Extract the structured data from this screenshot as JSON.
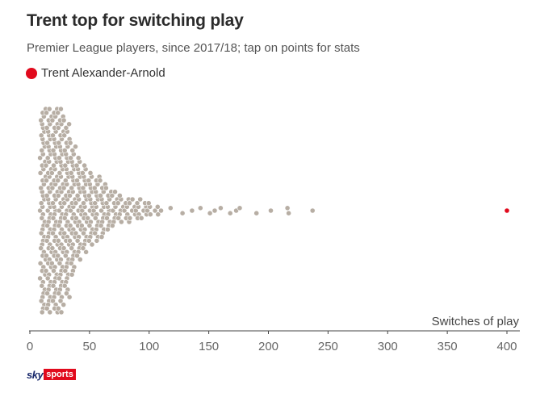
{
  "title": "Trent top for switching play",
  "subtitle": "Premier League players, since 2017/18; tap on points for stats",
  "legend": {
    "label": "Trent Alexander-Arnold",
    "color": "#e10a1d"
  },
  "brand": {
    "sky": "sky",
    "sports": "sports"
  },
  "colors": {
    "dot": "#b7aea4",
    "dot_stroke": "#ffffff",
    "highlight": "#e10a1d",
    "axis": "#444444",
    "tick_text": "#666666"
  },
  "chart_data": {
    "type": "scatter",
    "variant": "beeswarm",
    "title": "Trent top for switching play",
    "subtitle": "Premier League players, since 2017/18; tap on points for stats",
    "xlabel": "Switches of play",
    "xlim": [
      0,
      400
    ],
    "xticks": [
      "0",
      "50",
      "100",
      "150",
      "200",
      "250",
      "300",
      "350",
      "400"
    ],
    "grid": false,
    "legend_placement": "top-left",
    "distribution": {
      "note_counts_are_estimates": true,
      "bins": [
        {
          "x": 10,
          "count": 60
        },
        {
          "x": 15,
          "count": 70
        },
        {
          "x": 20,
          "count": 68
        },
        {
          "x": 25,
          "count": 55
        },
        {
          "x": 30,
          "count": 48
        },
        {
          "x": 35,
          "count": 36
        },
        {
          "x": 40,
          "count": 28
        },
        {
          "x": 45,
          "count": 24
        },
        {
          "x": 50,
          "count": 20
        },
        {
          "x": 55,
          "count": 18
        },
        {
          "x": 60,
          "count": 16
        },
        {
          "x": 65,
          "count": 12
        },
        {
          "x": 70,
          "count": 10
        },
        {
          "x": 75,
          "count": 8
        },
        {
          "x": 80,
          "count": 7
        },
        {
          "x": 85,
          "count": 6
        },
        {
          "x": 90,
          "count": 6
        },
        {
          "x": 95,
          "count": 5
        },
        {
          "x": 100,
          "count": 4
        },
        {
          "x": 105,
          "count": 3
        }
      ]
    },
    "outliers": [
      110,
      118,
      128,
      136,
      143,
      151,
      155,
      160,
      168,
      173,
      176,
      190,
      202,
      216,
      217,
      237
    ],
    "highlight": {
      "name": "Trent Alexander-Arnold",
      "x": 400
    }
  }
}
